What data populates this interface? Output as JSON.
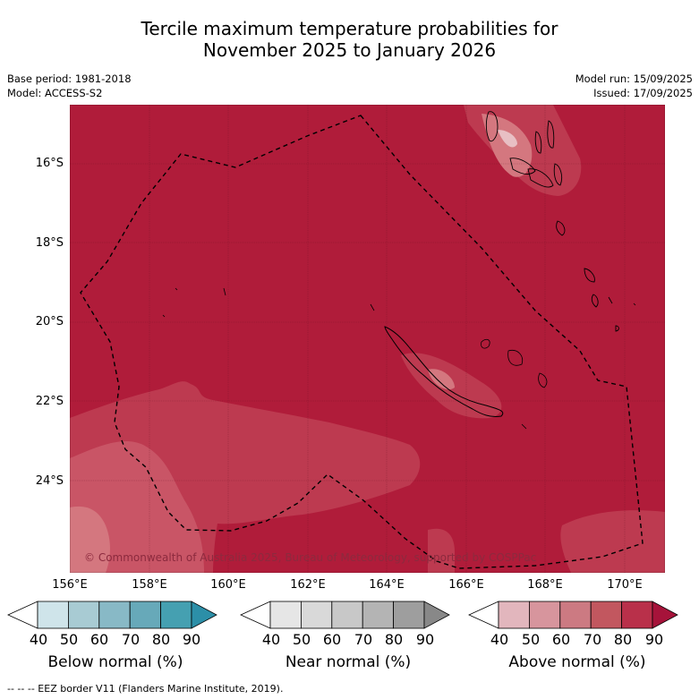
{
  "title": {
    "line1": "Tercile maximum temperature probabilities for",
    "line2": "November 2025 to January 2026"
  },
  "meta": {
    "base_period": "Base period: 1981-2018",
    "model": "Model: ACCESS-S2",
    "model_run": "Model run: 15/09/2025",
    "issued": "Issued: 17/09/2025"
  },
  "map": {
    "colors": {
      "above_90": "#b01c3a",
      "above_80": "#bd3a50",
      "above_70": "#c95566",
      "above_60": "#d4777f",
      "above_50": "#de9aa2",
      "above_40": "#e8bfc4"
    },
    "lat_labels": [
      "16°S",
      "18°S",
      "20°S",
      "22°S",
      "24°S"
    ],
    "lon_labels": [
      "156°E",
      "158°E",
      "160°E",
      "162°E",
      "164°E",
      "166°E",
      "168°E",
      "170°E"
    ],
    "copyright": "© Commonwealth of Australia 2025, Bureau of Meteorology, supported by COSPPac"
  },
  "legend": {
    "below": {
      "label": "Below normal (%)",
      "ticks": [
        "40",
        "50",
        "60",
        "70",
        "80",
        "90"
      ],
      "colors": [
        "#ffffff",
        "#cfe4ea",
        "#a8cbd3",
        "#88b9c6",
        "#67a9b9",
        "#45a0b1",
        "#2c8fa8"
      ]
    },
    "near": {
      "label": "Near normal (%)",
      "ticks": [
        "40",
        "50",
        "60",
        "70",
        "80",
        "90"
      ],
      "colors": [
        "#ffffff",
        "#e6e6e6",
        "#d9d9d9",
        "#c8c8c8",
        "#b4b4b4",
        "#9e9e9e",
        "#888888"
      ]
    },
    "above": {
      "label": "Above normal (%)",
      "ticks": [
        "40",
        "50",
        "60",
        "70",
        "80",
        "90"
      ],
      "colors": [
        "#ffffff",
        "#e2b6bd",
        "#d7959d",
        "#cc7a82",
        "#c2575f",
        "#b9304a",
        "#a6133a"
      ]
    }
  },
  "footer": {
    "eez_note": "--  --  -- EEZ border V11 (Flanders Marine Institute, 2019)."
  }
}
